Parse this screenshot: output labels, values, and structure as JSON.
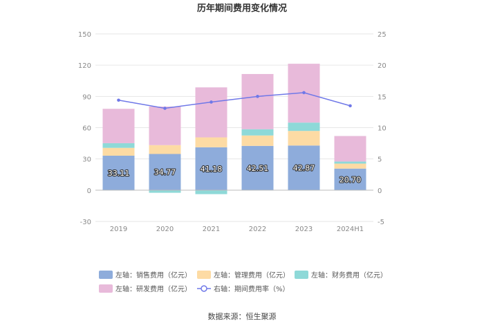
{
  "chart_data": {
    "type": "bar",
    "title": "历年期间费用变化情况",
    "categories": [
      "2019",
      "2020",
      "2021",
      "2022",
      "2023",
      "2024H1"
    ],
    "left_axis": {
      "ticks": [
        150,
        120,
        90,
        60,
        30,
        0,
        -30
      ],
      "ylim": [
        -30,
        150
      ]
    },
    "right_axis": {
      "ticks": [
        25,
        20,
        15,
        10,
        5,
        0,
        -5
      ],
      "ylim": [
        -5,
        25
      ]
    },
    "stacked": true,
    "grid": true,
    "legend_position": "bottom",
    "series": [
      {
        "name": "左轴：销售费用（亿元）",
        "axis": "left",
        "type": "bar",
        "color": "#8eacdb",
        "values": [
          33.11,
          34.77,
          41.18,
          42.51,
          42.87,
          20.7
        ],
        "data_labels": [
          "33.11",
          "34.77",
          "41.18",
          "42.51",
          "42.87",
          "20.70"
        ]
      },
      {
        "name": "左轴：管理费用（亿元）",
        "axis": "left",
        "type": "bar",
        "color": "#fddba4",
        "values": [
          7.5,
          8.5,
          9.5,
          10.0,
          14.0,
          4.8
        ]
      },
      {
        "name": "左轴：财务费用（亿元）",
        "axis": "left",
        "type": "bar",
        "color": "#8ed9d8",
        "values": [
          4.5,
          -2.5,
          -3.8,
          6.0,
          8.0,
          2.0
        ]
      },
      {
        "name": "左轴：研发费用（亿元）",
        "axis": "left",
        "type": "bar",
        "color": "#e8bada",
        "values": [
          33.0,
          37.0,
          48.0,
          53.0,
          56.5,
          24.5
        ]
      },
      {
        "name": "右轴：期间费用率（%）",
        "axis": "right",
        "type": "line",
        "color": "#6f78e8",
        "values": [
          14.4,
          13.1,
          14.1,
          15.0,
          15.6,
          13.5
        ]
      }
    ]
  },
  "source": "数据来源：恒生聚源"
}
